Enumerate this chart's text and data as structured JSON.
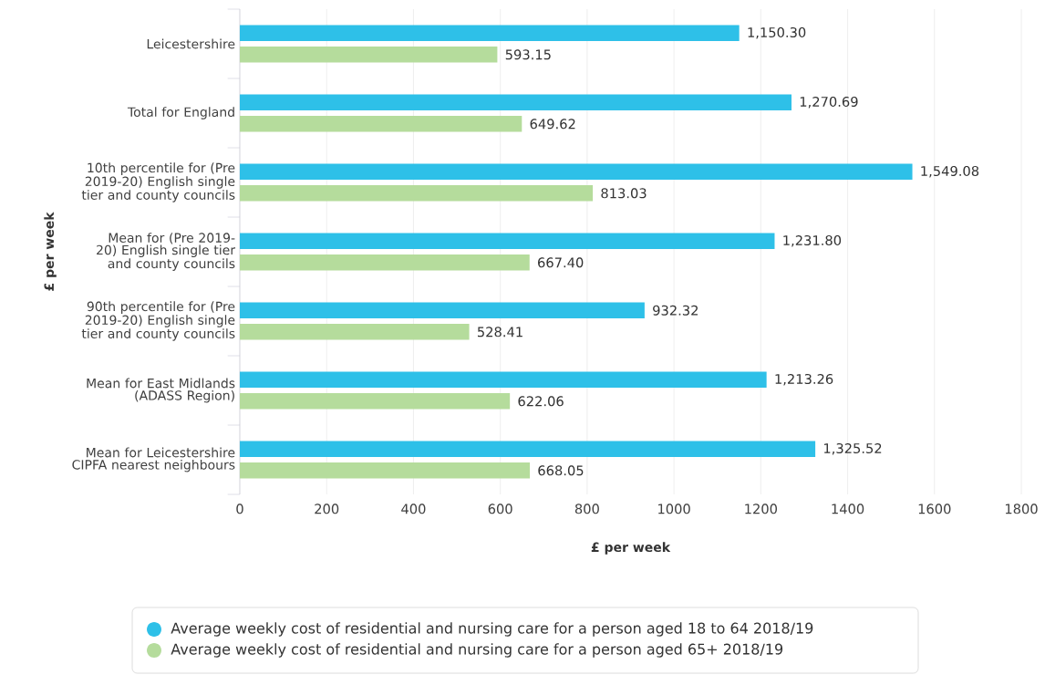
{
  "chart_data": {
    "type": "bar",
    "orientation": "horizontal",
    "xlabel": "£ per week",
    "ylabel": "£ per week",
    "categories": [
      "Leicestershire",
      "Total for England",
      "10th percentile for (Pre 2019-20) English single tier and county councils",
      "Mean for (Pre 2019-20) English single tier and county councils",
      "90th percentile for (Pre 2019-20) English single tier and county councils",
      "Mean for East Midlands (ADASS Region)",
      "Mean for Leicestershire CIPFA nearest neighbours"
    ],
    "series": [
      {
        "name": "Average weekly cost of residential and nursing care for a person aged 18 to 64 2018/19",
        "color": "#2ec0e8",
        "values": [
          1150.3,
          1270.69,
          1549.08,
          1231.8,
          932.32,
          1213.26,
          1325.52
        ],
        "value_labels": [
          "1,150.30",
          "1,270.69",
          "1,549.08",
          "1,231.80",
          "932.32",
          "1,213.26",
          "1,325.52"
        ]
      },
      {
        "name": "Average weekly cost of residential and nursing care for a person aged 65+ 2018/19",
        "color": "#b5dc9c",
        "values": [
          593.15,
          649.62,
          813.03,
          667.4,
          528.41,
          622.06,
          668.05
        ],
        "value_labels": [
          "593.15",
          "649.62",
          "813.03",
          "667.40",
          "528.41",
          "622.06",
          "668.05"
        ]
      }
    ],
    "xlim": [
      0,
      1800
    ],
    "xticks": [
      0,
      200,
      400,
      600,
      800,
      1000,
      1200,
      1400,
      1600,
      1800
    ],
    "grid": "x",
    "legend": "bottom"
  }
}
